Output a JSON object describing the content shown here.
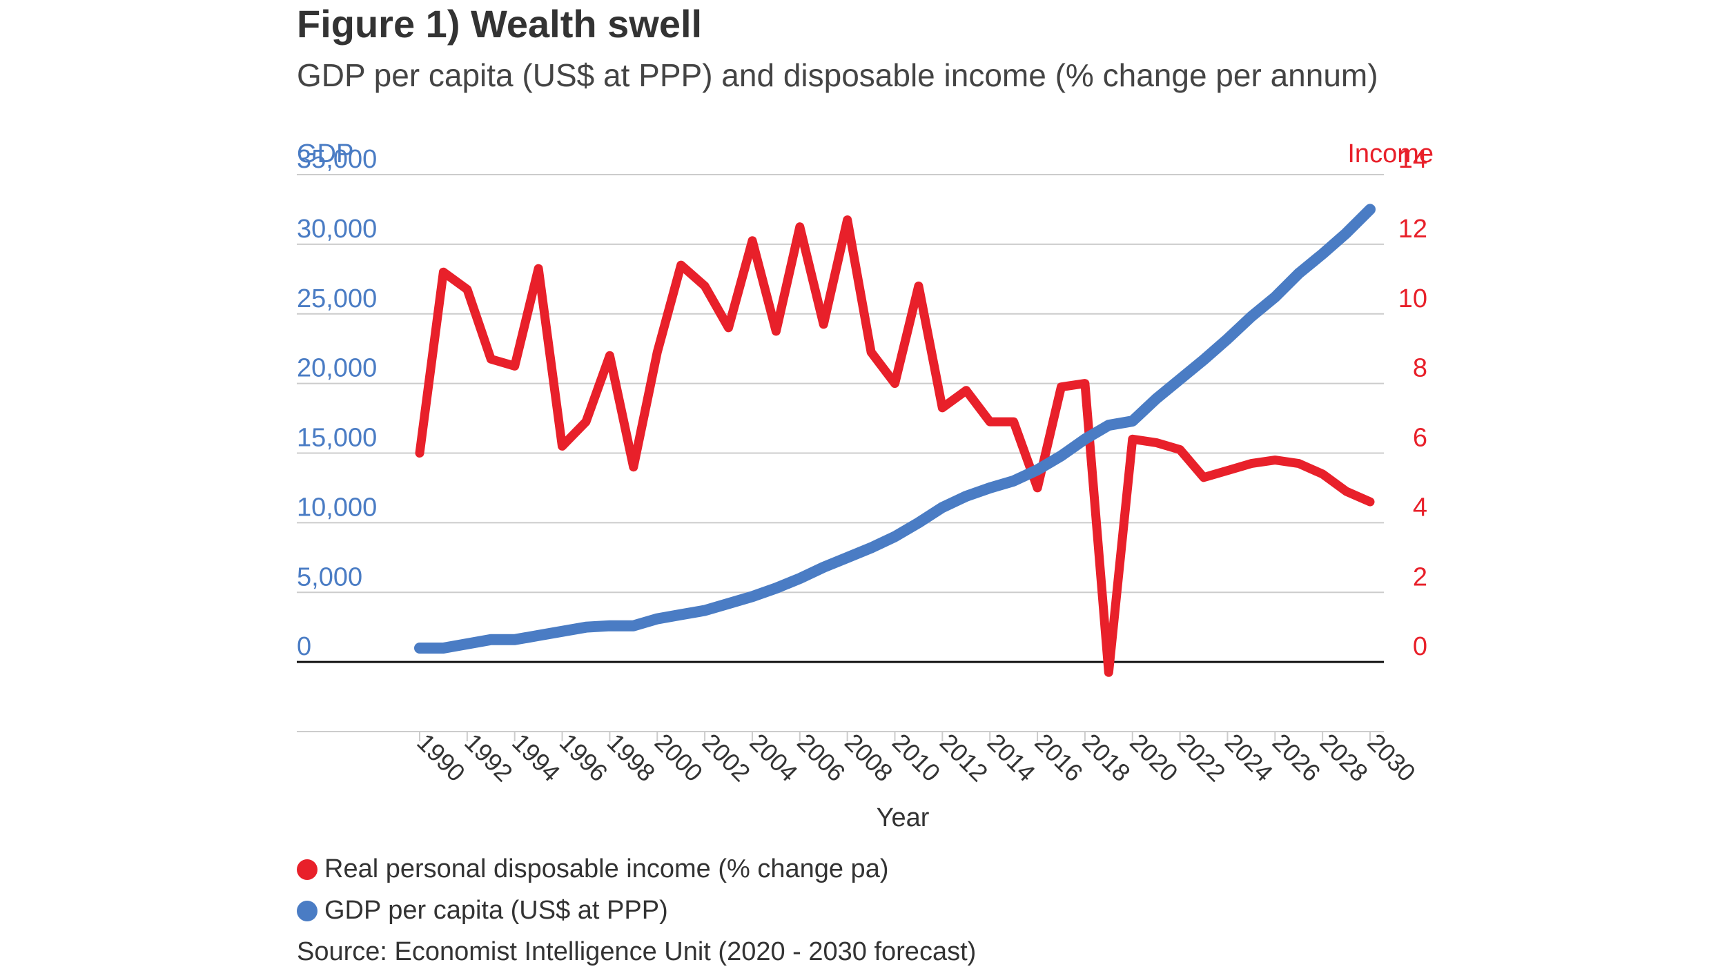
{
  "header": {
    "title": "Figure 1) Wealth swell",
    "subtitle": "GDP per capita (US$ at PPP) and disposable income (% change per annum)"
  },
  "legend": {
    "income_label": "Real personal disposable income (% change pa)",
    "gdp_label": "GDP per capita (US$ at PPP)"
  },
  "source": "Source: Economist Intelligence Unit (2020 - 2030 forecast)",
  "colors": {
    "gdp": "#4a7cc4",
    "income": "#e8202a",
    "grid": "#cccccc",
    "axis": "#111111",
    "text": "#333333"
  },
  "chart_data": {
    "type": "line",
    "xlabel": "Year",
    "x_ticks": [
      "1990",
      "1992",
      "1994",
      "1996",
      "1998",
      "2000",
      "2002",
      "2004",
      "2006",
      "2008",
      "2010",
      "2012",
      "2014",
      "2016",
      "2018",
      "2020",
      "2022",
      "2024",
      "2026",
      "2028",
      "2030"
    ],
    "x": [
      1990,
      1991,
      1992,
      1993,
      1994,
      1995,
      1996,
      1997,
      1998,
      1999,
      2000,
      2001,
      2002,
      2003,
      2004,
      2005,
      2006,
      2007,
      2008,
      2009,
      2010,
      2011,
      2012,
      2013,
      2014,
      2015,
      2016,
      2017,
      2018,
      2019,
      2020,
      2021,
      2022,
      2023,
      2024,
      2025,
      2026,
      2027,
      2028,
      2029,
      2030
    ],
    "y_left": {
      "label": "GDP",
      "ticks": [
        "0",
        "5,000",
        "10,000",
        "15,000",
        "20,000",
        "25,000",
        "30,000",
        "35,000"
      ],
      "range": [
        -5000,
        35000
      ]
    },
    "y_right": {
      "label": "Income",
      "ticks": [
        "0",
        "2",
        "4",
        "6",
        "8",
        "10",
        "12",
        "14"
      ],
      "range": [
        -2,
        14
      ]
    },
    "grid": true,
    "legend_position": "bottom-left",
    "series": [
      {
        "name": "Real personal disposable income (% change pa)",
        "axis": "right",
        "color": "#e8202a",
        "values": [
          6.0,
          11.2,
          10.7,
          8.7,
          8.5,
          11.3,
          6.2,
          6.9,
          8.8,
          5.6,
          8.9,
          11.4,
          10.8,
          9.6,
          12.1,
          9.5,
          12.5,
          9.7,
          12.7,
          8.9,
          8.0,
          10.8,
          7.3,
          7.8,
          6.9,
          6.9,
          5.0,
          7.9,
          8.0,
          -0.3,
          6.4,
          6.3,
          6.1,
          5.3,
          5.5,
          5.7,
          5.8,
          5.7,
          5.4,
          4.9,
          4.6
        ]
      },
      {
        "name": "GDP per capita (US$ at PPP)",
        "axis": "left",
        "color": "#4a7cc4",
        "values": [
          1000,
          1000,
          1300,
          1600,
          1600,
          1900,
          2200,
          2500,
          2600,
          2600,
          3100,
          3400,
          3700,
          4200,
          4700,
          5300,
          6000,
          6800,
          7500,
          8200,
          9000,
          10000,
          11100,
          11900,
          12500,
          13000,
          13800,
          14800,
          16000,
          17000,
          17300,
          18900,
          20300,
          21700,
          23200,
          24800,
          26200,
          27900,
          29300,
          30800,
          32500
        ]
      }
    ]
  }
}
